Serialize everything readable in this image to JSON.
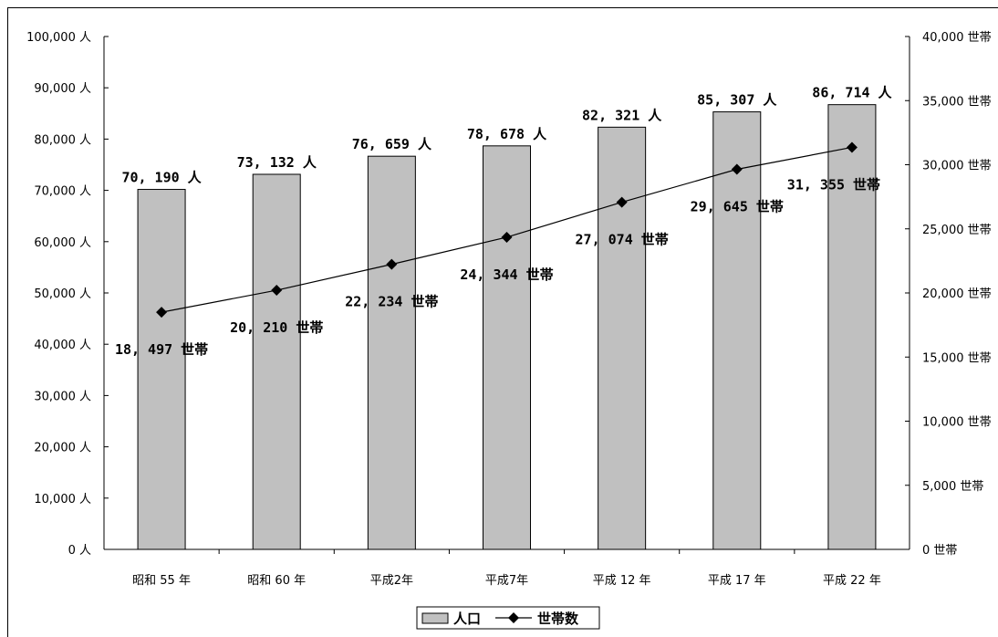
{
  "chart_data": {
    "type": "bar",
    "categories": [
      "昭和 55 年",
      "昭和 60 年",
      "平成2年",
      "平成7年",
      "平成 12 年",
      "平成 17 年",
      "平成 22 年"
    ],
    "series": [
      {
        "name": "人口",
        "type": "bar",
        "axis": "left",
        "values": [
          70190,
          73132,
          76659,
          78678,
          82321,
          85307,
          86714
        ],
        "labels": [
          "70, 190 人",
          "73, 132 人",
          "76, 659 人",
          "78, 678 人",
          "82, 321 人",
          "85, 307 人",
          "86, 714 人"
        ],
        "color": "#c0c0c0"
      },
      {
        "name": "世帯数",
        "type": "line",
        "axis": "right",
        "values": [
          18497,
          20210,
          22234,
          24344,
          27074,
          29645,
          31355
        ],
        "labels": [
          "18, 497 世帯",
          "20, 210 世帯",
          "22, 234 世帯",
          "24, 344 世帯",
          "27, 074 世帯",
          "29, 645 世帯",
          "31, 355 世帯"
        ],
        "color": "#000000"
      }
    ],
    "left_axis": {
      "ylim": [
        0,
        100000
      ],
      "ticks": [
        "0 人",
        "10,000 人",
        "20,000 人",
        "30,000 人",
        "40,000 人",
        "50,000 人",
        "60,000 人",
        "70,000 人",
        "80,000 人",
        "90,000 人",
        "100,000 人"
      ]
    },
    "right_axis": {
      "ylim": [
        0,
        40000
      ],
      "ticks": [
        "0 世帯",
        "5,000 世帯",
        "10,000 世帯",
        "15,000 世帯",
        "20,000 世帯",
        "25,000 世帯",
        "30,000 世帯",
        "35,000 世帯",
        "40,000 世帯"
      ]
    },
    "legend": {
      "placement": "bottom",
      "items": [
        "人口",
        "世帯数"
      ]
    },
    "grid": false
  }
}
